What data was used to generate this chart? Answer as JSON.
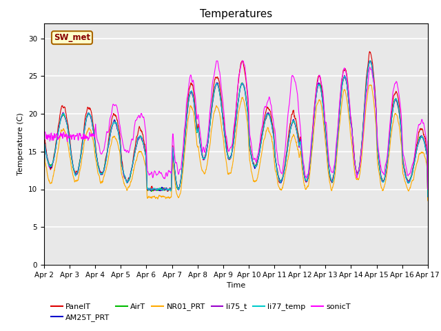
{
  "title": "Temperatures",
  "xlabel": "Time",
  "ylabel": "Temperature (C)",
  "ylim": [
    0,
    32
  ],
  "yticks": [
    0,
    5,
    10,
    15,
    20,
    25,
    30
  ],
  "annotation": "SW_met",
  "series_colors": {
    "PanelT": "#dd0000",
    "AM25T_PRT": "#0000cc",
    "AirT": "#00bb00",
    "NR01_PRT": "#ffaa00",
    "li75_t": "#9900cc",
    "li77_temp": "#00cccc",
    "sonicT": "#ff00ff"
  },
  "xtick_labels": [
    "Apr 2",
    "Apr 3",
    "Apr 4",
    "Apr 5",
    "Apr 6",
    "Apr 7",
    "Apr 8",
    "Apr 9",
    "Apr 10",
    "Apr 11",
    "Apr 12",
    "Apr 13",
    "Apr 14",
    "Apr 15",
    "Apr 16",
    "Apr 17"
  ],
  "bg_color": "#e8e8e8",
  "grid_color": "#ffffff",
  "annotation_bg": "#ffffcc",
  "annotation_border": "#aa6600",
  "annotation_text_color": "#880000",
  "linewidth": 0.8,
  "title_fontsize": 11,
  "label_fontsize": 8,
  "tick_fontsize": 7.5,
  "legend_fontsize": 8
}
